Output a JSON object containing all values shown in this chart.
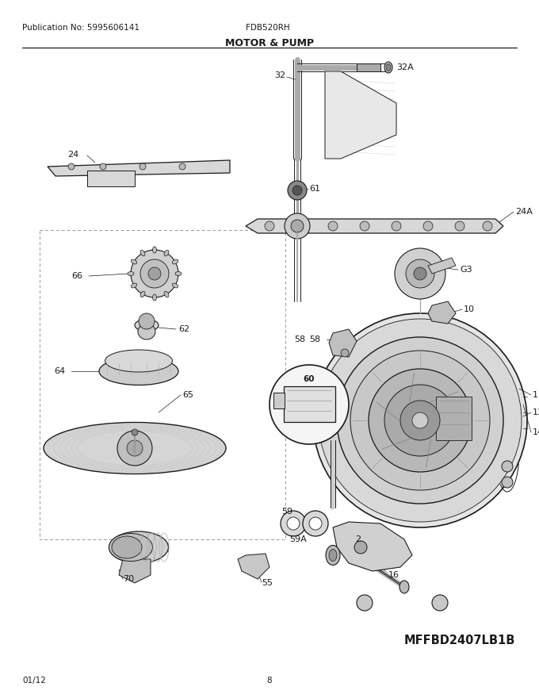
{
  "title": "MOTOR & PUMP",
  "publication": "Publication No: 5995606141",
  "model": "FDB520RH",
  "part_number": "MFFBD2407LB1B",
  "date": "01/12",
  "page": "8",
  "bg_color": "#ffffff",
  "lc": "#1a1a1a",
  "figsize": [
    6.8,
    8.8
  ],
  "dpi": 100
}
